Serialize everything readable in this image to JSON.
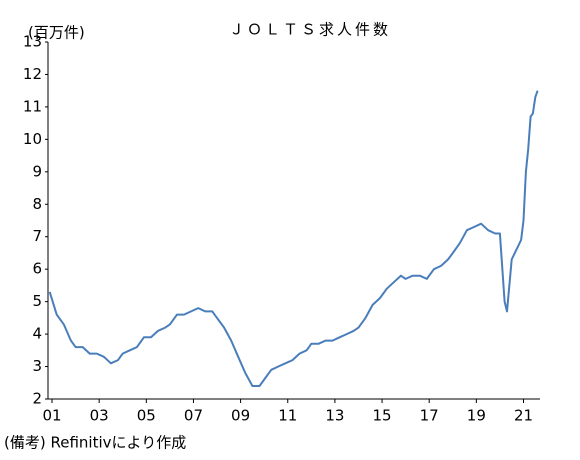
{
  "chart_data": {
    "type": "line",
    "title": "ＪＯＬＴＳ求人件数",
    "y_label": "(百万件)",
    "note": "(備考) Refinitivにより作成",
    "xlim": [
      2000.83,
      2021.7
    ],
    "xticks": [
      {
        "value": 2001,
        "label": "01"
      },
      {
        "value": 2003,
        "label": "03"
      },
      {
        "value": 2005,
        "label": "05"
      },
      {
        "value": 2007,
        "label": "07"
      },
      {
        "value": 2009,
        "label": "09"
      },
      {
        "value": 2011,
        "label": "11"
      },
      {
        "value": 2013,
        "label": "13"
      },
      {
        "value": 2015,
        "label": "15"
      },
      {
        "value": 2017,
        "label": "17"
      },
      {
        "value": 2019,
        "label": "19"
      },
      {
        "value": 2021,
        "label": "21"
      }
    ],
    "ylim": [
      2,
      13
    ],
    "yticks": [
      2,
      3,
      4,
      5,
      6,
      7,
      8,
      9,
      10,
      11,
      12,
      13
    ],
    "grid": false,
    "series": [
      {
        "name": "JOLTS求人件数",
        "color": "#4a7ebb",
        "x": [
          2000.9,
          2001.2,
          2001.5,
          2001.8,
          2002.0,
          2002.3,
          2002.6,
          2002.9,
          2003.2,
          2003.5,
          2003.8,
          2004.0,
          2004.3,
          2004.6,
          2004.9,
          2005.2,
          2005.5,
          2005.8,
          2006.0,
          2006.3,
          2006.6,
          2006.9,
          2007.2,
          2007.5,
          2007.8,
          2008.0,
          2008.3,
          2008.6,
          2008.9,
          2009.2,
          2009.5,
          2009.8,
          2010.0,
          2010.3,
          2010.6,
          2010.9,
          2011.2,
          2011.5,
          2011.8,
          2012.0,
          2012.3,
          2012.6,
          2012.9,
          2013.2,
          2013.5,
          2013.8,
          2014.0,
          2014.3,
          2014.6,
          2014.9,
          2015.2,
          2015.5,
          2015.8,
          2016.0,
          2016.3,
          2016.6,
          2016.9,
          2017.2,
          2017.5,
          2017.8,
          2018.0,
          2018.3,
          2018.6,
          2018.9,
          2019.2,
          2019.5,
          2019.8,
          2020.0,
          2020.2,
          2020.3,
          2020.5,
          2020.7,
          2020.9,
          2021.0,
          2021.1,
          2021.2,
          2021.3,
          2021.4,
          2021.5,
          2021.6
        ],
        "values": [
          5.3,
          4.6,
          4.3,
          3.8,
          3.6,
          3.6,
          3.4,
          3.4,
          3.3,
          3.1,
          3.2,
          3.4,
          3.5,
          3.6,
          3.9,
          3.9,
          4.1,
          4.2,
          4.3,
          4.6,
          4.6,
          4.7,
          4.8,
          4.7,
          4.7,
          4.5,
          4.2,
          3.8,
          3.3,
          2.8,
          2.4,
          2.4,
          2.6,
          2.9,
          3.0,
          3.1,
          3.2,
          3.4,
          3.5,
          3.7,
          3.7,
          3.8,
          3.8,
          3.9,
          4.0,
          4.1,
          4.2,
          4.5,
          4.9,
          5.1,
          5.4,
          5.6,
          5.8,
          5.7,
          5.8,
          5.8,
          5.7,
          6.0,
          6.1,
          6.3,
          6.5,
          6.8,
          7.2,
          7.3,
          7.4,
          7.2,
          7.1,
          7.1,
          5.0,
          4.7,
          6.3,
          6.6,
          6.9,
          7.5,
          9.0,
          9.7,
          10.7,
          10.8,
          11.3,
          11.5
        ]
      }
    ]
  }
}
